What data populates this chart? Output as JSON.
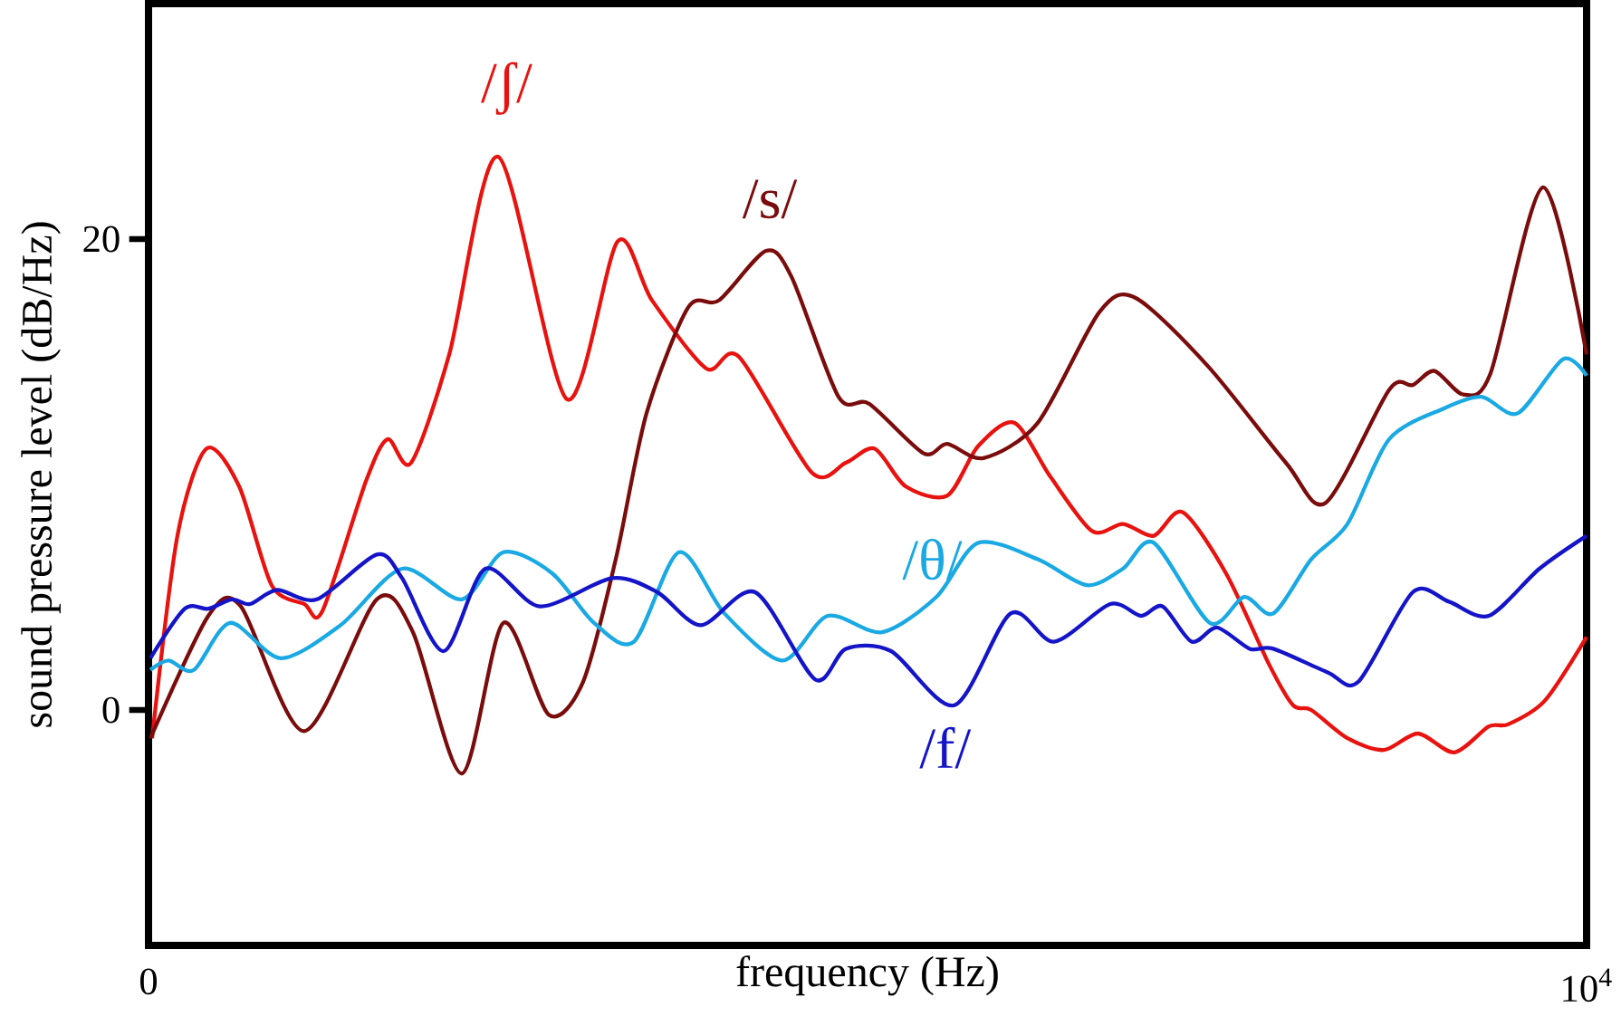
{
  "chart_data": {
    "type": "line",
    "xlabel": "frequency (Hz)",
    "ylabel": "sound pressure level (dB/Hz)",
    "xlim": [
      0,
      10000
    ],
    "ylim": [
      -10,
      30
    ],
    "xticks": [
      0,
      {
        "value": 10000,
        "label": "10$^{4}$"
      }
    ],
    "yticks": [
      0,
      20
    ],
    "grid": false,
    "legend": false,
    "marker": "none",
    "line_style": "solid",
    "series": [
      {
        "name": "/ʃ/",
        "color": "#e8120f",
        "x": [
          25,
          201,
          403,
          630,
          856,
          1083,
          1209,
          1511,
          1662,
          1826,
          2091,
          2431,
          2909,
          3262,
          3501,
          3879,
          4106,
          4610,
          4849,
          5050,
          5264,
          5554,
          5768,
          6020,
          6272,
          6561,
          6776,
          6990,
          7191,
          7493,
          7795,
          7959,
          8085,
          8337,
          8589,
          8828,
          9080,
          9320,
          9458,
          9710,
          10000
        ],
        "values": [
          -1.2,
          7.4,
          11.1,
          9.5,
          5.3,
          4.5,
          4.2,
          9.7,
          11.5,
          10.5,
          15.1,
          23.5,
          13.2,
          19.9,
          17.4,
          14.5,
          15.0,
          10.1,
          10.5,
          11.1,
          9.5,
          9.1,
          11.2,
          12.2,
          9.9,
          7.6,
          7.9,
          7.4,
          8.4,
          5.8,
          1.9,
          0.2,
          0,
          -1.2,
          -1.7,
          -1.0,
          -1.8,
          -0.7,
          -0.6,
          0.4,
          3.1
        ]
      },
      {
        "name": "/s/",
        "color": "#7a0c0c",
        "x": [
          13,
          416,
          642,
          1083,
          1587,
          1839,
          2179,
          2468,
          2783,
          3022,
          3249,
          3463,
          3753,
          3967,
          4294,
          4471,
          4798,
          5012,
          5390,
          5554,
          5806,
          6184,
          6612,
          6864,
          7367,
          7909,
          8186,
          8627,
          8791,
          8942,
          9143,
          9332,
          9697,
          10000
        ],
        "values": [
          -1.2,
          4.0,
          4.4,
          -0.9,
          4.7,
          3.3,
          -2.7,
          3.7,
          -0.2,
          1.2,
          6.4,
          12.6,
          17.1,
          17.4,
          19.5,
          18.4,
          13.3,
          13.0,
          10.9,
          11.3,
          10.7,
          12.2,
          16.9,
          17.5,
          14.6,
          10.5,
          8.8,
          13.6,
          13.8,
          14.4,
          13.4,
          14.3,
          22.2,
          15.1
        ]
      },
      {
        "name": "/θ/",
        "color": "#1aa9e3",
        "x": [
          13,
          139,
          315,
          567,
          919,
          1335,
          1763,
          2179,
          2468,
          2808,
          3098,
          3375,
          3690,
          4005,
          4408,
          4723,
          5100,
          5478,
          5768,
          6184,
          6524,
          6776,
          6990,
          7380,
          7619,
          7821,
          8085,
          8337,
          8627,
          9005,
          9269,
          9521,
          9836,
          10000
        ],
        "values": [
          1.7,
          2.1,
          1.7,
          3.7,
          2.2,
          3.6,
          6.0,
          4.7,
          6.7,
          5.8,
          3.7,
          2.9,
          6.7,
          4.1,
          2.1,
          4.0,
          3.3,
          4.8,
          7.1,
          6.4,
          5.3,
          6.0,
          7.1,
          3.7,
          4.8,
          4.1,
          6.4,
          7.9,
          11.5,
          12.8,
          13.3,
          12.6,
          14.9,
          14.2
        ]
      },
      {
        "name": "/f/",
        "color": "#1414c8",
        "x": [
          13,
          252,
          416,
          579,
          705,
          894,
          1171,
          1587,
          1763,
          2053,
          2342,
          2720,
          3224,
          3539,
          3841,
          4219,
          4635,
          4849,
          5164,
          5604,
          5995,
          6297,
          6687,
          6901,
          7052,
          7254,
          7430,
          7657,
          7821,
          8199,
          8413,
          8791,
          9043,
          9320,
          9672,
          10000
        ],
        "values": [
          2.2,
          4.3,
          4.3,
          4.7,
          4.5,
          5.1,
          4.7,
          6.6,
          5.6,
          2.5,
          6.0,
          4.4,
          5.6,
          5.0,
          3.6,
          5.0,
          1.3,
          2.6,
          2.5,
          0.2,
          4.1,
          2.9,
          4.5,
          4.0,
          4.4,
          2.9,
          3.5,
          2.6,
          2.6,
          1.6,
          1.2,
          5.0,
          4.6,
          4.0,
          6.0,
          7.4
        ]
      }
    ]
  }
}
